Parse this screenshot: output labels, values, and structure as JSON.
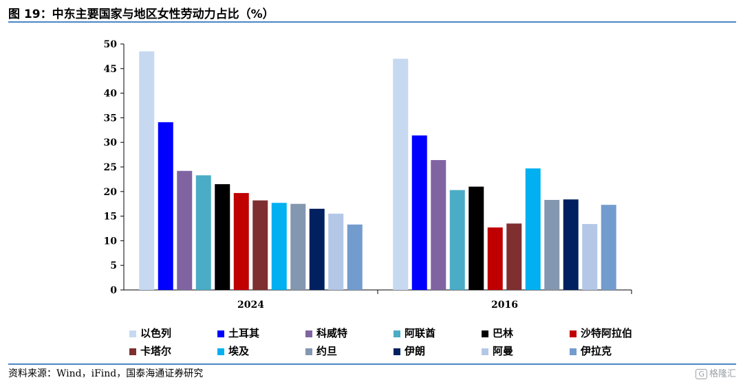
{
  "figure": {
    "title": "图 19：中东主要国家与地区女性劳动力占比（%）",
    "source": "资料来源：Wind，iFind，国泰海通证券研究",
    "watermark_mark": "G",
    "watermark_text": "格隆汇"
  },
  "chart_data": {
    "type": "bar",
    "categories": [
      "2024",
      "2016"
    ],
    "ylim": [
      0,
      50
    ],
    "yticks": [
      0,
      5,
      10,
      15,
      20,
      25,
      30,
      35,
      40,
      45,
      50
    ],
    "grid": false,
    "legend_position": "bottom",
    "series": [
      {
        "name": "以色列",
        "color": "#c6d9f1",
        "values": [
          48.5,
          47.0
        ]
      },
      {
        "name": "土耳其",
        "color": "#0000ff",
        "values": [
          34.1,
          31.4
        ]
      },
      {
        "name": "科威特",
        "color": "#8064a2",
        "values": [
          24.2,
          26.4
        ]
      },
      {
        "name": "阿联酋",
        "color": "#4bacc6",
        "values": [
          23.3,
          20.3
        ]
      },
      {
        "name": "巴林",
        "color": "#000000",
        "values": [
          21.5,
          21.0
        ]
      },
      {
        "name": "沙特阿拉伯",
        "color": "#c00000",
        "values": [
          19.7,
          12.7
        ]
      },
      {
        "name": "卡塔尔",
        "color": "#7f2f2f",
        "values": [
          18.2,
          13.5
        ]
      },
      {
        "name": "埃及",
        "color": "#00b0f0",
        "values": [
          17.7,
          24.7
        ]
      },
      {
        "name": "约旦",
        "color": "#8497b0",
        "values": [
          17.5,
          18.3
        ]
      },
      {
        "name": "伊朗",
        "color": "#002060",
        "values": [
          16.5,
          18.4
        ]
      },
      {
        "name": "阿曼",
        "color": "#b4c7e7",
        "values": [
          15.5,
          13.4
        ]
      },
      {
        "name": "伊拉克",
        "color": "#739cce",
        "values": [
          13.3,
          17.3
        ]
      }
    ]
  }
}
